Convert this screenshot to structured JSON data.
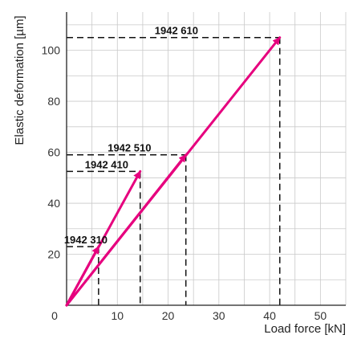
{
  "chart_data": {
    "type": "line",
    "title": "",
    "xlabel": "Load force [kN]",
    "ylabel": "Elastic deformation [µm]",
    "xlim": [
      0,
      55
    ],
    "ylim": [
      0,
      115
    ],
    "xticks": [
      "0",
      "10",
      "20",
      "30",
      "40",
      "50"
    ],
    "yticks": [
      "20",
      "40",
      "60",
      "80",
      "100"
    ],
    "grid": true,
    "line_color": "#e6007e",
    "guide_style": "dashed",
    "series": [
      {
        "name": "1942 310",
        "x": [
          0,
          6.3
        ],
        "y": [
          0,
          23
        ]
      },
      {
        "name": "1942 410",
        "x": [
          0,
          14.5
        ],
        "y": [
          0,
          52.5
        ]
      },
      {
        "name": "1942 510",
        "x": [
          0,
          23.5
        ],
        "y": [
          0,
          59
        ]
      },
      {
        "name": "1942 610",
        "x": [
          0,
          42
        ],
        "y": [
          0,
          105
        ]
      }
    ]
  }
}
